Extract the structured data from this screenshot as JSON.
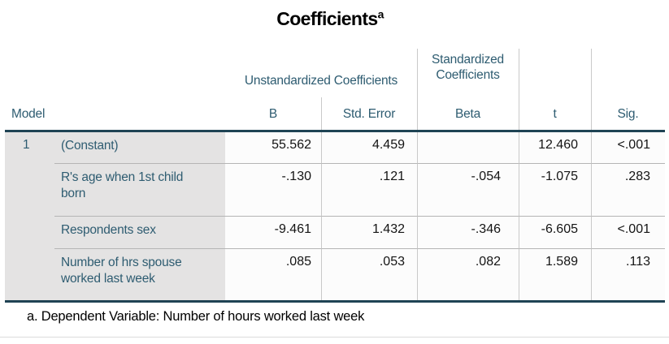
{
  "title": {
    "text": "Coefficients",
    "superscript": "a"
  },
  "table": {
    "headers": {
      "model": "Model",
      "unstandardized_group": "Unstandardized Coefficients",
      "standardized_group": "Standardized Coefficients",
      "b": "B",
      "std_error": "Std. Error",
      "beta": "Beta",
      "t": "t",
      "sig": "Sig."
    },
    "rows": [
      {
        "model": "1",
        "label": "(Constant)",
        "b": "55.562",
        "std_error": "4.459",
        "beta": "",
        "t": "12.460",
        "sig": "<.001"
      },
      {
        "model": "",
        "label": "R's age when 1st child born",
        "b": "-.130",
        "std_error": ".121",
        "beta": "-.054",
        "t": "-1.075",
        "sig": ".283"
      },
      {
        "model": "",
        "label": "Respondents sex",
        "b": "-9.461",
        "std_error": "1.432",
        "beta": "-.346",
        "t": "-6.605",
        "sig": "<.001"
      },
      {
        "model": "",
        "label": "Number of hrs spouse worked last week",
        "b": ".085",
        "std_error": ".053",
        "beta": ".082",
        "t": "1.589",
        "sig": ".113"
      }
    ],
    "footnote": "a. Dependent Variable: Number of hours worked last week"
  },
  "colors": {
    "header_text": "#2e5c71",
    "thick_rule": "#1f4354",
    "row_divider": "#b5b5b5",
    "column_divider": "#c9c9c9",
    "stub_background": "#e4e3e3",
    "value_text": "#141414"
  }
}
